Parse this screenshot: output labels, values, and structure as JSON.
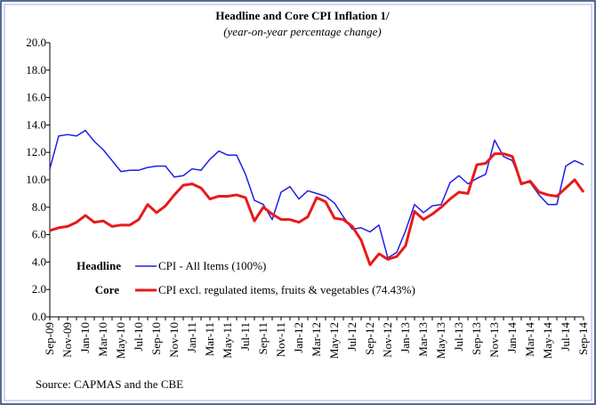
{
  "chart_data": {
    "type": "line",
    "title": "Headline and Core CPI Inflation 1/",
    "subtitle": "(year-on-year percentage change)",
    "source": "Source: CAPMAS and the CBE",
    "legend_labels": [
      "Headline",
      "Core"
    ],
    "categories": [
      "Sep-09",
      null,
      "Nov-09",
      null,
      "Jan-10",
      null,
      "Mar-10",
      null,
      "May-10",
      null,
      "Jul-10",
      null,
      "Sep-10",
      null,
      "Nov-10",
      null,
      "Jan-11",
      null,
      "Mar-11",
      null,
      "May-11",
      null,
      "Jul-11",
      null,
      "Sep-11",
      null,
      "Nov-11",
      null,
      "Jan-12",
      null,
      "Mar-12",
      null,
      "May-12",
      null,
      "Jul-12",
      null,
      "Sep-12",
      null,
      "Nov-12",
      null,
      "Jan-13",
      null,
      "Mar-13",
      null,
      "May-13",
      null,
      "Jul-13",
      null,
      "Sep-13",
      null,
      "Nov-13",
      null,
      "Jan-14",
      null,
      "Mar-14",
      null,
      "May-14",
      null,
      "Jul-14",
      null,
      "Sep-14"
    ],
    "series": [
      {
        "name": "CPI - All Items (100%)",
        "color": "#1f1fe6",
        "width": 1.5,
        "values": [
          10.8,
          13.2,
          13.3,
          13.2,
          13.6,
          12.8,
          12.2,
          11.4,
          10.6,
          10.7,
          10.7,
          10.9,
          11.0,
          11.0,
          10.2,
          10.3,
          10.8,
          10.7,
          11.5,
          12.1,
          11.8,
          11.8,
          10.4,
          8.5,
          8.2,
          7.1,
          9.1,
          9.5,
          8.6,
          9.2,
          9.0,
          8.8,
          8.3,
          7.3,
          6.4,
          6.5,
          6.2,
          6.7,
          4.3,
          4.7,
          6.3,
          8.2,
          7.6,
          8.1,
          8.2,
          9.8,
          10.3,
          9.7,
          10.1,
          10.4,
          12.9,
          11.7,
          11.4,
          9.8,
          9.8,
          8.9,
          8.2,
          8.2,
          11.0,
          11.4,
          11.1
        ]
      },
      {
        "name": "CPI excl. regulated items, fruits & vegetables (74.43%)",
        "color": "#e81a1a",
        "width": 3,
        "values": [
          6.3,
          6.5,
          6.6,
          6.9,
          7.4,
          6.9,
          7.0,
          6.6,
          6.7,
          6.7,
          7.1,
          8.2,
          7.6,
          8.1,
          8.9,
          9.6,
          9.7,
          9.4,
          8.6,
          8.8,
          8.8,
          8.9,
          8.7,
          7.0,
          8.0,
          7.5,
          7.1,
          7.1,
          6.9,
          7.3,
          8.7,
          8.4,
          7.2,
          7.1,
          6.6,
          5.6,
          3.8,
          4.6,
          4.2,
          4.4,
          5.2,
          7.7,
          7.1,
          7.5,
          8.0,
          8.6,
          9.1,
          9.0,
          11.1,
          11.2,
          11.9,
          11.9,
          11.7,
          9.7,
          9.9,
          9.1,
          8.9,
          8.8,
          9.4,
          10.0,
          9.1
        ]
      }
    ],
    "ylim": [
      0,
      20
    ],
    "yticks": [
      {
        "value": 0,
        "label": "0.0"
      },
      {
        "value": 2,
        "label": "2.0"
      },
      {
        "value": 4,
        "label": "4.0"
      },
      {
        "value": 6,
        "label": "6.0"
      },
      {
        "value": 8,
        "label": "8.0"
      },
      {
        "value": 10,
        "label": "10.0"
      },
      {
        "value": 12,
        "label": "12.0"
      },
      {
        "value": 14,
        "label": "14.0"
      },
      {
        "value": 16,
        "label": "16.0"
      },
      {
        "value": 18,
        "label": "18.0"
      },
      {
        "value": 20,
        "label": "20.0"
      }
    ],
    "grid": false
  }
}
